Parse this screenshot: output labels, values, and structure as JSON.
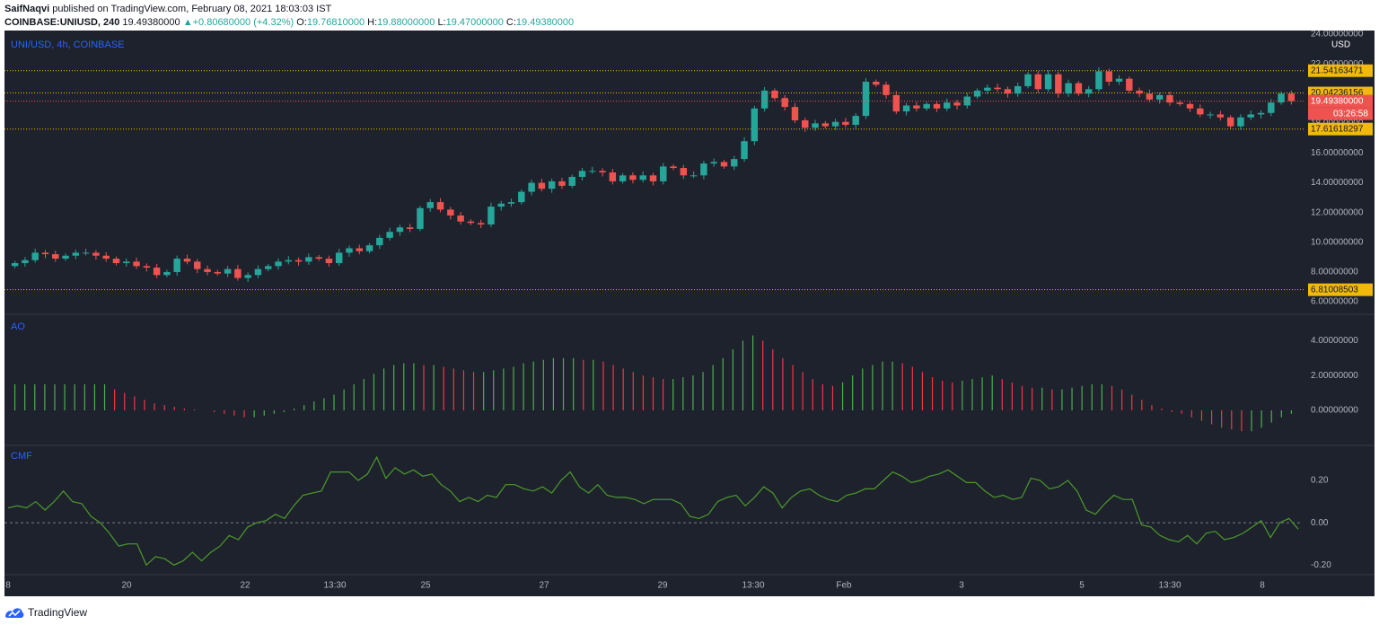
{
  "header": {
    "author": "SaifNaqvi",
    "published": "published on TradingView.com, February 08, 2021 18:03:03 IST",
    "symbol": "COINBASE:UNIUSD, 240",
    "last": "19.49380000",
    "arrow": "▲",
    "change": "+0.80680000 (+4.32%)",
    "o_label": "O:",
    "o_value": "19.76810000",
    "h_label": "H:",
    "h_value": "19.88000000",
    "l_label": "L:",
    "l_value": "19.47000000",
    "c_label": "C:",
    "c_value": "19.49380000"
  },
  "footer": {
    "brand": "TradingView",
    "logo_icon": "tradingview-logo-icon"
  },
  "colors": {
    "background": "#1e222d",
    "grid": "#2a2e39",
    "text": "#b2b5be",
    "up": "#26a69a",
    "down": "#ef5350",
    "level": "#f0b90b",
    "ao_up": "#4caf50",
    "ao_down": "#f23645",
    "cmf": "#4c9a2a",
    "title": "#2962ff"
  },
  "chart_data": [
    {
      "type": "candlestick",
      "title": "UNI/USD, 4h, COINBASE",
      "currency": "USD",
      "ylim": [
        5.4,
        24.0
      ],
      "yticks": [
        "6.00000000",
        "8.00000000",
        "10.00000000",
        "12.00000000",
        "14.00000000",
        "16.00000000",
        "18.00000000",
        "20.00000000",
        "22.00000000",
        "24.00000000"
      ],
      "x_tick_labels": [
        "8",
        "20",
        "22",
        "13:30",
        "25",
        "27",
        "29",
        "13:30",
        "Feb",
        "3",
        "5",
        "13:30",
        "8"
      ],
      "levels": [
        "21.54163471",
        "20.04236156",
        "17.61618297",
        "6.81008503"
      ],
      "last_price": "19.49380000",
      "countdown": "03:26:58",
      "closes": [
        8.6,
        8.8,
        9.3,
        9.2,
        8.9,
        9.1,
        9.3,
        9.3,
        9.1,
        8.9,
        8.6,
        8.7,
        8.4,
        8.3,
        7.8,
        8.0,
        8.9,
        8.7,
        8.2,
        8.0,
        7.9,
        8.2,
        7.6,
        7.8,
        8.2,
        8.4,
        8.7,
        8.8,
        8.7,
        9.0,
        8.9,
        8.6,
        9.3,
        9.6,
        9.4,
        9.8,
        10.3,
        10.7,
        11.0,
        10.9,
        12.3,
        12.7,
        12.2,
        11.8,
        11.4,
        11.3,
        11.2,
        12.4,
        12.6,
        12.7,
        13.4,
        14.0,
        13.6,
        14.1,
        13.8,
        14.4,
        14.8,
        14.8,
        14.7,
        14.1,
        14.5,
        14.2,
        14.5,
        14.1,
        15.1,
        15.0,
        14.5,
        14.5,
        15.3,
        15.4,
        15.1,
        15.6,
        16.8,
        19.0,
        20.2,
        19.7,
        19.1,
        18.2,
        17.7,
        18.0,
        17.8,
        18.1,
        17.9,
        18.5,
        20.8,
        20.6,
        19.9,
        18.8,
        19.2,
        19.0,
        19.3,
        19.0,
        19.4,
        19.2,
        19.8,
        20.2,
        20.4,
        20.3,
        20.0,
        20.5,
        21.3,
        20.3,
        21.3,
        20.0,
        20.7,
        20.0,
        20.3,
        21.5,
        20.8,
        21.0,
        20.2,
        20.0,
        19.6,
        19.9,
        19.4,
        19.3,
        19.0,
        18.6,
        18.6,
        18.4,
        17.8,
        18.4,
        18.6,
        18.7,
        19.4,
        20.0,
        19.5
      ]
    },
    {
      "type": "bar",
      "title": "AO",
      "ylim": [
        -1.6,
        5.1
      ],
      "yticks": [
        "0.00000000",
        "2.00000000",
        "4.00000000"
      ],
      "values": [
        1.5,
        1.5,
        1.5,
        1.5,
        1.5,
        1.5,
        1.5,
        1.5,
        1.5,
        1.5,
        1.2,
        1.0,
        0.8,
        0.6,
        0.4,
        0.3,
        0.2,
        0.1,
        0.05,
        0,
        -0.1,
        -0.2,
        -0.3,
        -0.4,
        -0.4,
        -0.3,
        -0.2,
        -0.1,
        0.1,
        0.3,
        0.5,
        0.7,
        0.9,
        1.2,
        1.5,
        1.8,
        2.1,
        2.4,
        2.6,
        2.7,
        2.7,
        2.6,
        2.6,
        2.5,
        2.4,
        2.3,
        2.2,
        2.2,
        2.3,
        2.4,
        2.5,
        2.7,
        2.8,
        2.9,
        3.0,
        3.0,
        3.0,
        2.9,
        2.9,
        2.8,
        2.6,
        2.4,
        2.2,
        2.0,
        1.9,
        1.8,
        1.8,
        1.9,
        2.0,
        2.2,
        2.6,
        3.0,
        3.5,
        4.0,
        4.3,
        4.0,
        3.5,
        3.0,
        2.6,
        2.2,
        1.8,
        1.5,
        1.4,
        1.6,
        2.0,
        2.4,
        2.6,
        2.8,
        2.8,
        2.7,
        2.5,
        2.2,
        1.9,
        1.7,
        1.6,
        1.7,
        1.8,
        1.9,
        2.0,
        1.8,
        1.6,
        1.4,
        1.3,
        1.3,
        1.2,
        1.2,
        1.3,
        1.4,
        1.5,
        1.5,
        1.4,
        1.2,
        0.9,
        0.6,
        0.3,
        0.1,
        -0.1,
        -0.2,
        -0.4,
        -0.6,
        -0.8,
        -1.0,
        -1.1,
        -1.2,
        -1.2,
        -1.0,
        -0.7,
        -0.4,
        -0.2
      ]
    },
    {
      "type": "line",
      "title": "CMF",
      "ylim": [
        -0.22,
        0.34
      ],
      "yticks": [
        "0.20",
        "0.00",
        "-0.20"
      ],
      "values": [
        0.07,
        0.08,
        0.07,
        0.1,
        0.06,
        0.1,
        0.15,
        0.1,
        0.09,
        0.03,
        0.0,
        -0.05,
        -0.11,
        -0.1,
        -0.1,
        -0.2,
        -0.16,
        -0.17,
        -0.2,
        -0.18,
        -0.14,
        -0.18,
        -0.14,
        -0.11,
        -0.06,
        -0.08,
        -0.02,
        0.0,
        0.01,
        0.04,
        0.02,
        0.08,
        0.13,
        0.14,
        0.15,
        0.24,
        0.24,
        0.24,
        0.2,
        0.23,
        0.31,
        0.21,
        0.26,
        0.23,
        0.25,
        0.22,
        0.23,
        0.18,
        0.15,
        0.1,
        0.12,
        0.1,
        0.13,
        0.12,
        0.18,
        0.18,
        0.16,
        0.15,
        0.17,
        0.14,
        0.2,
        0.24,
        0.17,
        0.14,
        0.18,
        0.13,
        0.12,
        0.12,
        0.11,
        0.09,
        0.11,
        0.11,
        0.11,
        0.09,
        0.03,
        0.02,
        0.04,
        0.1,
        0.12,
        0.13,
        0.08,
        0.12,
        0.17,
        0.14,
        0.07,
        0.12,
        0.15,
        0.16,
        0.13,
        0.11,
        0.1,
        0.13,
        0.14,
        0.16,
        0.16,
        0.2,
        0.24,
        0.22,
        0.19,
        0.2,
        0.22,
        0.23,
        0.25,
        0.22,
        0.19,
        0.19,
        0.15,
        0.12,
        0.13,
        0.11,
        0.12,
        0.21,
        0.2,
        0.16,
        0.17,
        0.2,
        0.15,
        0.06,
        0.04,
        0.09,
        0.13,
        0.11,
        0.11,
        -0.01,
        -0.02,
        -0.06,
        -0.08,
        -0.09,
        -0.06,
        -0.1,
        -0.05,
        -0.04,
        -0.08,
        -0.07,
        -0.05,
        -0.02,
        0.01,
        -0.07,
        0.0,
        0.02,
        -0.03
      ]
    }
  ]
}
